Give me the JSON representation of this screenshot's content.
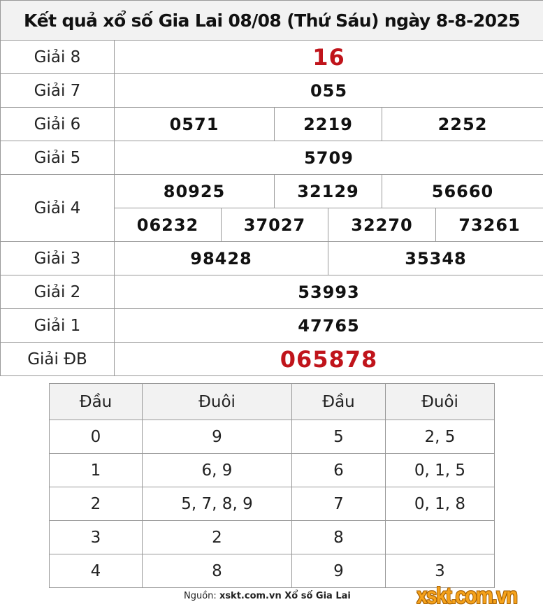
{
  "title": "Kết quả xổ số Gia Lai 08/08 (Thứ Sáu) ngày 8-8-2025",
  "prizes": {
    "g8": {
      "label": "Giải 8",
      "values": [
        "16"
      ]
    },
    "g7": {
      "label": "Giải 7",
      "values": [
        "055"
      ]
    },
    "g6": {
      "label": "Giải 6",
      "values": [
        "0571",
        "2219",
        "2252"
      ]
    },
    "g5": {
      "label": "Giải 5",
      "values": [
        "5709"
      ]
    },
    "g4": {
      "label": "Giải 4",
      "values": [
        "80925",
        "32129",
        "56660",
        "06232",
        "37027",
        "32270",
        "73261"
      ]
    },
    "g3": {
      "label": "Giải 3",
      "values": [
        "98428",
        "35348"
      ]
    },
    "g2": {
      "label": "Giải 2",
      "values": [
        "53993"
      ]
    },
    "g1": {
      "label": "Giải 1",
      "values": [
        "47765"
      ]
    },
    "gdb": {
      "label": "Giải ĐB",
      "values": [
        "065878"
      ]
    }
  },
  "loto": {
    "headers": [
      "Đầu",
      "Đuôi",
      "Đầu",
      "Đuôi"
    ],
    "rows": [
      [
        "0",
        "9",
        "5",
        "2, 5"
      ],
      [
        "1",
        "6, 9",
        "6",
        "0, 1, 5"
      ],
      [
        "2",
        "5, 7, 8, 9",
        "7",
        "0, 1, 8"
      ],
      [
        "3",
        "2",
        "8",
        ""
      ],
      [
        "4",
        "8",
        "9",
        "3"
      ]
    ]
  },
  "source": {
    "prefix": "Nguồn:",
    "site": "xskt.com.vn Xổ số Gia Lai"
  },
  "logo": "xskt.com.vn",
  "colors": {
    "highlight": "#c0141b",
    "header_bg": "#f2f2f2",
    "logo": "#f5a21b"
  }
}
